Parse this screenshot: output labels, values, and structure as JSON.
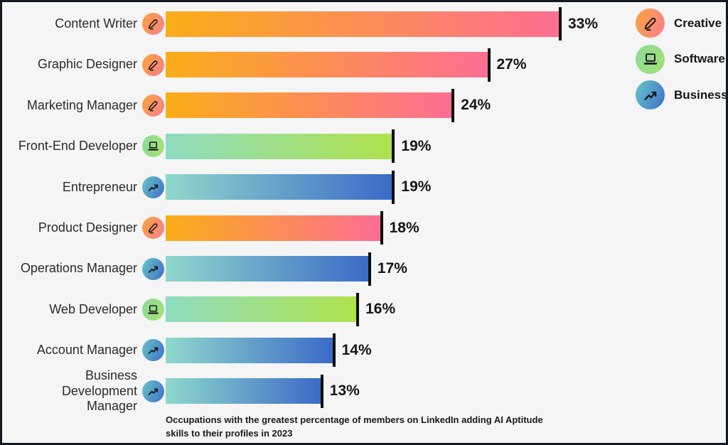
{
  "window": {
    "background_color": "#f5f5f6",
    "frame_color": "#131824"
  },
  "chart_data": {
    "type": "bar",
    "orientation": "horizontal",
    "caption": "Occupations with the greatest percentage of members on LinkedIn adding AI Aptitude skills to their profiles in 2023",
    "value_suffix": "%",
    "xlim": [
      0,
      33
    ],
    "grid": false,
    "categories": [
      "Content Writer",
      "Graphic Designer",
      "Marketing Manager",
      "Front-End Developer",
      "Entrepreneur",
      "Product Designer",
      "Operations Manager",
      "Web Developer",
      "Account Manager",
      "Business Development Manager"
    ],
    "values": [
      33,
      27,
      24,
      19,
      19,
      18,
      17,
      16,
      14,
      13
    ],
    "rows": [
      {
        "label": "Content Writer",
        "value": 33,
        "display_value": "33%",
        "group": "Creative",
        "icon": "pen-icon"
      },
      {
        "label": "Graphic Designer",
        "value": 27,
        "display_value": "27%",
        "group": "Creative",
        "icon": "pen-icon"
      },
      {
        "label": "Marketing Manager",
        "value": 24,
        "display_value": "24%",
        "group": "Creative",
        "icon": "pen-icon"
      },
      {
        "label": "Front-End Developer",
        "value": 19,
        "display_value": "19%",
        "group": "Software",
        "icon": "laptop-icon"
      },
      {
        "label": "Entrepreneur",
        "value": 19,
        "display_value": "19%",
        "group": "Business",
        "icon": "trend-up-icon"
      },
      {
        "label": "Product Designer",
        "value": 18,
        "display_value": "18%",
        "group": "Creative",
        "icon": "pen-icon"
      },
      {
        "label": "Operations Manager",
        "value": 17,
        "display_value": "17%",
        "group": "Business",
        "icon": "trend-up-icon"
      },
      {
        "label": "Web Developer",
        "value": 16,
        "display_value": "16%",
        "group": "Software",
        "icon": "laptop-icon"
      },
      {
        "label": "Account Manager",
        "value": 14,
        "display_value": "14%",
        "group": "Business",
        "icon": "trend-up-icon"
      },
      {
        "label": "Business Development Manager",
        "value": 13,
        "display_value": "13%",
        "group": "Business",
        "icon": "trend-up-icon"
      }
    ],
    "legend": {
      "position": "top-right",
      "items": [
        {
          "label": "Creative",
          "icon": "pen-icon",
          "color_start": "#F9A43A",
          "color_end": "#F87E91"
        },
        {
          "label": "Software",
          "icon": "laptop-icon",
          "color_start": "#8AD99B",
          "color_end": "#A6E273"
        },
        {
          "label": "Business",
          "icon": "trend-up-icon",
          "color_start": "#68C5C8",
          "color_end": "#3F6FC9"
        }
      ]
    },
    "bar_colors": {
      "Creative": {
        "start": "#FBAD18",
        "end": "#FC6E93"
      },
      "Software": {
        "start": "#8EDCC1",
        "end": "#AFE14C"
      },
      "Business": {
        "start": "#8FD8CC",
        "end": "#3B6BC7"
      }
    },
    "bar_end_tick_color": "#0e0e0e"
  }
}
